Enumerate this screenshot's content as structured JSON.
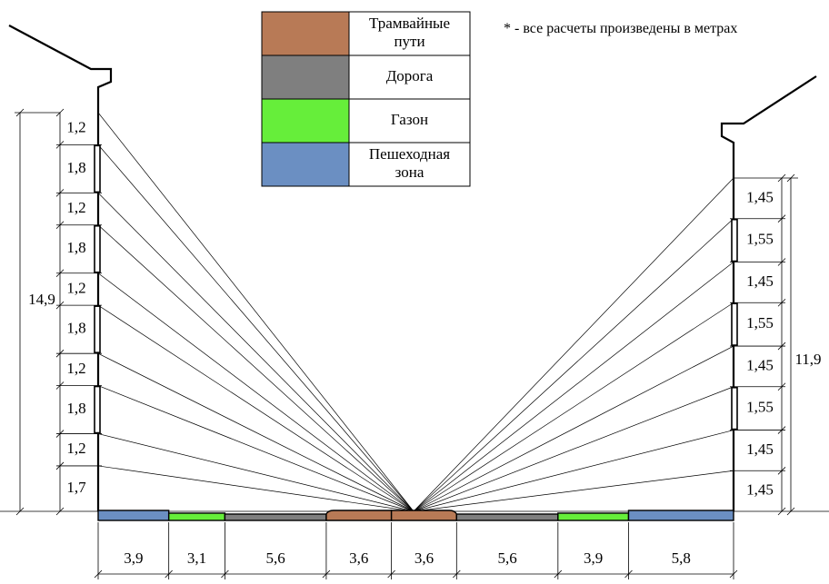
{
  "colors": {
    "tram": "#b87a56",
    "road": "#7f7f7f",
    "lawn": "#66ee3a",
    "pedestrian": "#6b8fc2",
    "line": "#000000"
  },
  "legend": [
    {
      "label_lines": [
        "Трамвайные",
        "пути"
      ],
      "color": "#b87a56"
    },
    {
      "label_lines": [
        "Дорога"
      ],
      "color": "#7f7f7f"
    },
    {
      "label_lines": [
        "Газон"
      ],
      "color": "#66ee3a"
    },
    {
      "label_lines": [
        "Пешеходная",
        "зона"
      ],
      "color": "#6b8fc2"
    }
  ],
  "note": "* - все расчеты произведены в метрах",
  "left_building": {
    "total": "14,9",
    "floors": [
      "1,2",
      "1,8",
      "1,2",
      "1,8",
      "1,2",
      "1,8",
      "1,2",
      "1,8",
      "1,2",
      "1,7"
    ]
  },
  "right_building": {
    "total": "11,9",
    "floors": [
      "1,45",
      "1,55",
      "1,45",
      "1,55",
      "1,45",
      "1,55",
      "1,45",
      "1,45"
    ]
  },
  "street": {
    "segments": [
      {
        "width": "3,9",
        "zone": "pedestrian"
      },
      {
        "width": "3,1",
        "zone": "lawn"
      },
      {
        "width": "5,6",
        "zone": "road"
      },
      {
        "width": "3,6",
        "zone": "tram"
      },
      {
        "width": "3,6",
        "zone": "tram"
      },
      {
        "width": "5,6",
        "zone": "road"
      },
      {
        "width": "3,9",
        "zone": "lawn"
      },
      {
        "width": "5,8",
        "zone": "pedestrian"
      }
    ]
  }
}
